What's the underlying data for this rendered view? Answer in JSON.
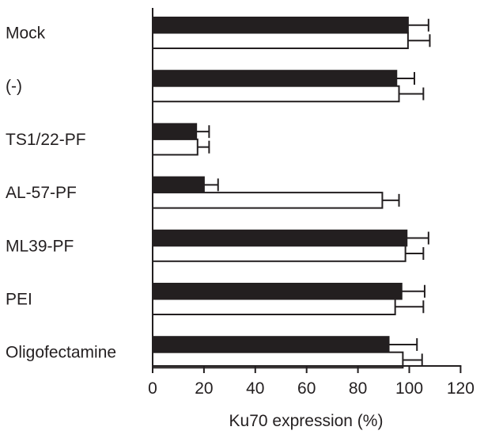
{
  "chart_data": {
    "type": "bar",
    "orientation": "horizontal",
    "categories": [
      "Mock",
      "(-)",
      "TS1/22-PF",
      "AL-57-PF",
      "ML39-PF",
      "PEI",
      "Oligofectamine"
    ],
    "series": [
      {
        "fill": "#231f20",
        "values": [
          99.5,
          95,
          17,
          20,
          99,
          97,
          92
        ],
        "errors": [
          8,
          7,
          5,
          5.5,
          8.5,
          9,
          11
        ]
      },
      {
        "fill": "#ffffff",
        "values": [
          99.5,
          96,
          17.5,
          89.5,
          98.5,
          94.5,
          97.5
        ],
        "errors": [
          8.5,
          9.5,
          4.5,
          6.5,
          7,
          11,
          7.5
        ]
      }
    ],
    "xlabel": "Ku70 expression (%)",
    "ylabel": "",
    "title": "",
    "xlim": [
      0,
      120
    ],
    "xticks": [
      "0",
      "20",
      "40",
      "60",
      "80",
      "100",
      "120"
    ],
    "grid": false,
    "legend": "none"
  }
}
